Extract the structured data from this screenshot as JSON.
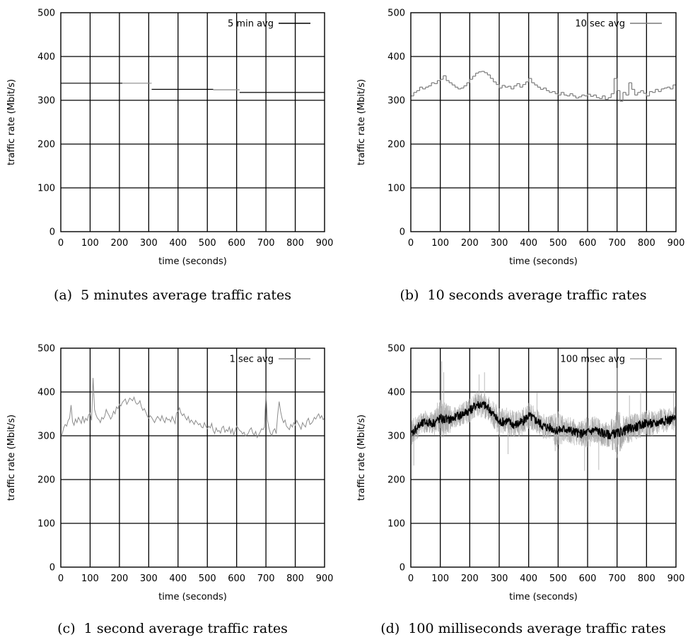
{
  "chart_data": [
    {
      "type": "line",
      "panel": "a",
      "caption": "(a)  5 minutes average traffic rates",
      "xlabel": "time (seconds)",
      "ylabel": "traffic rate (Mbit/s)",
      "xlim": [
        0,
        900
      ],
      "ylim": [
        0,
        500
      ],
      "xticks": [
        0,
        100,
        200,
        300,
        400,
        500,
        600,
        700,
        800,
        900
      ],
      "yticks": [
        0,
        100,
        200,
        300,
        400,
        500
      ],
      "grid": true,
      "legend_position": "top-right",
      "series": [
        {
          "name": "5 min avg",
          "color": "#000000",
          "step": true,
          "x": [
            0,
            210,
            310,
            520,
            610
          ],
          "y": [
            339,
            339,
            325,
            324,
            318
          ],
          "x_end": 900,
          "colors": [
            "#000000",
            "#8a8a8a",
            "#000000",
            "#8a8a8a",
            "#000000"
          ]
        }
      ]
    },
    {
      "type": "line",
      "panel": "b",
      "caption": "(b)  10 seconds average traffic rates",
      "xlabel": "time (seconds)",
      "ylabel": "traffic rate (Mbit/s)",
      "xlim": [
        0,
        900
      ],
      "ylim": [
        0,
        500
      ],
      "xticks": [
        0,
        100,
        200,
        300,
        400,
        500,
        600,
        700,
        800,
        900
      ],
      "yticks": [
        0,
        100,
        200,
        300,
        400,
        500
      ],
      "grid": true,
      "legend_position": "top-right",
      "series": [
        {
          "name": "10 sec avg",
          "color": "#7a7a7a",
          "step": true,
          "x": [
            0,
            10,
            20,
            30,
            40,
            50,
            60,
            70,
            80,
            90,
            100,
            110,
            120,
            130,
            140,
            150,
            160,
            170,
            180,
            190,
            200,
            210,
            220,
            230,
            240,
            250,
            260,
            270,
            280,
            290,
            300,
            310,
            320,
            330,
            340,
            350,
            360,
            370,
            380,
            390,
            400,
            410,
            420,
            430,
            440,
            450,
            460,
            470,
            480,
            490,
            500,
            510,
            520,
            530,
            540,
            550,
            560,
            570,
            580,
            590,
            600,
            610,
            620,
            630,
            640,
            650,
            660,
            670,
            680,
            690,
            700,
            710,
            720,
            730,
            740,
            750,
            760,
            770,
            780,
            790,
            800,
            810,
            820,
            830,
            840,
            850,
            860,
            870,
            880,
            890
          ],
          "y": [
            310,
            318,
            322,
            330,
            326,
            330,
            333,
            340,
            338,
            345,
            348,
            356,
            345,
            340,
            335,
            330,
            326,
            328,
            333,
            340,
            348,
            355,
            362,
            365,
            366,
            363,
            358,
            350,
            342,
            336,
            328,
            334,
            330,
            332,
            326,
            333,
            338,
            330,
            336,
            342,
            350,
            340,
            335,
            330,
            325,
            328,
            322,
            318,
            320,
            315,
            312,
            318,
            312,
            310,
            315,
            310,
            305,
            308,
            312,
            310,
            314,
            309,
            312,
            306,
            304,
            310,
            302,
            306,
            315,
            350,
            322,
            298,
            318,
            312,
            340,
            325,
            312,
            318,
            322,
            316,
            310,
            320,
            318,
            325,
            320,
            326,
            328,
            330,
            326,
            335
          ],
          "x_end": 900
        }
      ]
    },
    {
      "type": "line",
      "panel": "c",
      "caption": "(c)  1 second average traffic rates",
      "xlabel": "time (seconds)",
      "ylabel": "traffic rate (Mbit/s)",
      "xlim": [
        0,
        900
      ],
      "ylim": [
        0,
        500
      ],
      "xticks": [
        0,
        100,
        200,
        300,
        400,
        500,
        600,
        700,
        800,
        900
      ],
      "yticks": [
        0,
        100,
        200,
        300,
        400,
        500
      ],
      "grid": true,
      "legend_position": "top-right",
      "series": [
        {
          "name": "1 sec avg",
          "color": "#8c8c8c",
          "step": false,
          "x": [
            0,
            5,
            10,
            15,
            20,
            25,
            30,
            35,
            40,
            45,
            50,
            55,
            60,
            65,
            70,
            75,
            80,
            85,
            90,
            95,
            100,
            105,
            110,
            115,
            120,
            125,
            130,
            135,
            140,
            145,
            150,
            155,
            160,
            165,
            170,
            175,
            180,
            185,
            190,
            195,
            200,
            205,
            210,
            215,
            220,
            225,
            230,
            235,
            240,
            245,
            250,
            255,
            260,
            265,
            270,
            275,
            280,
            285,
            290,
            295,
            300,
            305,
            310,
            315,
            320,
            325,
            330,
            335,
            340,
            345,
            350,
            355,
            360,
            365,
            370,
            375,
            380,
            385,
            390,
            395,
            400,
            405,
            410,
            415,
            420,
            425,
            430,
            435,
            440,
            445,
            450,
            455,
            460,
            465,
            470,
            475,
            480,
            485,
            490,
            495,
            500,
            505,
            510,
            515,
            520,
            525,
            530,
            535,
            540,
            545,
            550,
            555,
            560,
            565,
            570,
            575,
            580,
            585,
            590,
            595,
            600,
            605,
            610,
            615,
            620,
            625,
            630,
            635,
            640,
            645,
            650,
            655,
            660,
            665,
            670,
            675,
            680,
            685,
            690,
            695,
            700,
            705,
            710,
            715,
            720,
            725,
            730,
            735,
            740,
            745,
            750,
            755,
            760,
            765,
            770,
            775,
            780,
            785,
            790,
            795,
            800,
            805,
            810,
            815,
            820,
            825,
            830,
            835,
            840,
            845,
            850,
            855,
            860,
            865,
            870,
            875,
            880,
            885,
            890,
            895,
            900
          ],
          "y": [
            296,
            305,
            318,
            326,
            322,
            335,
            340,
            370,
            332,
            324,
            338,
            330,
            342,
            336,
            328,
            345,
            330,
            340,
            335,
            348,
            352,
            335,
            432,
            360,
            348,
            340,
            337,
            330,
            342,
            338,
            345,
            360,
            352,
            346,
            338,
            344,
            356,
            350,
            366,
            362,
            372,
            368,
            376,
            380,
            384,
            372,
            378,
            386,
            383,
            380,
            388,
            376,
            372,
            374,
            380,
            366,
            358,
            362,
            354,
            345,
            340,
            346,
            342,
            336,
            330,
            338,
            344,
            340,
            334,
            346,
            336,
            330,
            342,
            336,
            338,
            332,
            344,
            336,
            328,
            352,
            356,
            364,
            352,
            346,
            350,
            342,
            336,
            344,
            330,
            336,
            332,
            326,
            335,
            330,
            325,
            328,
            320,
            318,
            330,
            322,
            316,
            322,
            318,
            328,
            312,
            305,
            318,
            310,
            312,
            306,
            318,
            322,
            308,
            314,
            310,
            320,
            306,
            316,
            302,
            312,
            322,
            318,
            312,
            310,
            304,
            308,
            300,
            302,
            306,
            314,
            318,
            306,
            302,
            310,
            296,
            302,
            308,
            316,
            314,
            320,
            398,
            336,
            318,
            306,
            300,
            312,
            316,
            305,
            348,
            378,
            356,
            340,
            330,
            336,
            322,
            318,
            314,
            326,
            320,
            330,
            324,
            335,
            328,
            322,
            315,
            330,
            324,
            320,
            334,
            340,
            326,
            328,
            333,
            342,
            338,
            345,
            350,
            340,
            346,
            337,
            340
          ]
        }
      ]
    },
    {
      "type": "line",
      "panel": "d",
      "caption": "(d)  100 milliseconds average traffic rates",
      "xlabel": "time (seconds)",
      "ylabel": "traffic rate (Mbit/s)",
      "xlim": [
        0,
        900
      ],
      "ylim": [
        0,
        500
      ],
      "xticks": [
        0,
        100,
        200,
        300,
        400,
        500,
        600,
        700,
        800,
        900
      ],
      "yticks": [
        0,
        100,
        200,
        300,
        400,
        500
      ],
      "grid": true,
      "legend_position": "top-right",
      "series": [
        {
          "name": "100 msec avg",
          "color": "#aaaaaa",
          "mean_color": "#000000",
          "samples_per_second": 10,
          "x": [
            0,
            25,
            50,
            75,
            100,
            125,
            150,
            175,
            200,
            225,
            250,
            275,
            300,
            325,
            350,
            375,
            400,
            425,
            450,
            475,
            500,
            525,
            550,
            575,
            600,
            625,
            650,
            675,
            700,
            725,
            750,
            775,
            800,
            825,
            850,
            875,
            900
          ],
          "y_mean": [
            305,
            322,
            332,
            330,
            340,
            336,
            342,
            350,
            358,
            372,
            370,
            354,
            330,
            334,
            325,
            330,
            346,
            336,
            322,
            318,
            312,
            316,
            310,
            304,
            308,
            314,
            306,
            302,
            306,
            312,
            318,
            322,
            330,
            326,
            334,
            336,
            340
          ],
          "y_low": [
            230,
            280,
            290,
            285,
            295,
            270,
            300,
            305,
            310,
            325,
            330,
            300,
            260,
            285,
            265,
            280,
            300,
            285,
            270,
            265,
            225,
            270,
            250,
            245,
            220,
            255,
            245,
            250,
            245,
            250,
            265,
            265,
            270,
            275,
            270,
            290,
            290
          ],
          "y_high": [
            345,
            375,
            385,
            380,
            470,
            400,
            385,
            400,
            410,
            435,
            445,
            405,
            385,
            395,
            380,
            390,
            415,
            390,
            375,
            370,
            390,
            370,
            365,
            355,
            360,
            365,
            355,
            355,
            455,
            360,
            385,
            375,
            380,
            380,
            380,
            385,
            395
          ],
          "spikes": [
            [
              10,
              232
            ],
            [
              105,
              470
            ],
            [
              112,
              445
            ],
            [
              232,
              440
            ],
            [
              250,
              445
            ],
            [
              330,
              258
            ],
            [
              428,
              398
            ],
            [
              490,
              265
            ],
            [
              590,
              220
            ],
            [
              638,
              222
            ],
            [
              700,
              455
            ],
            [
              742,
              392
            ],
            [
              780,
              402
            ],
            [
              892,
              398
            ]
          ]
        }
      ]
    }
  ]
}
